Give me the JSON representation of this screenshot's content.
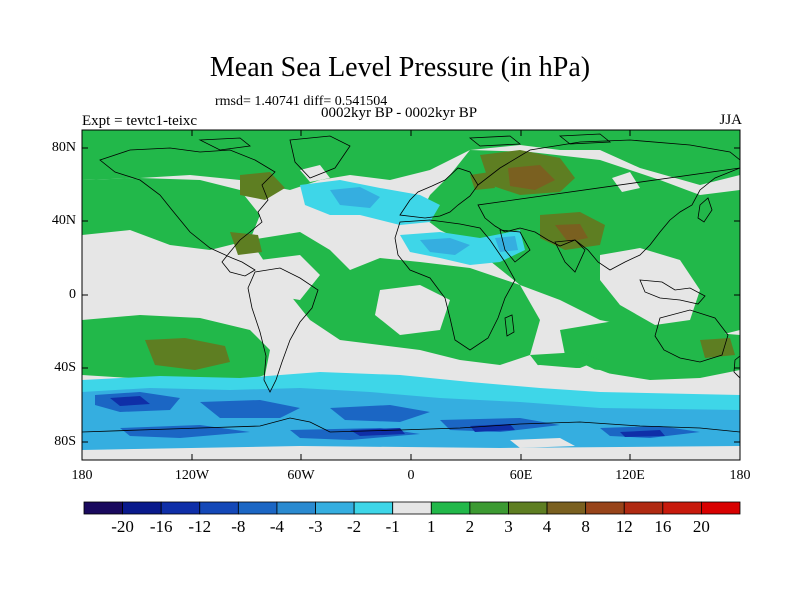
{
  "title": "Mean Sea Level Pressure (in hPa)",
  "stats": "rmsd= 1.40741 diff= 0.541504",
  "experiment": "Expt = tevtc1-teixc",
  "subtitle": "0002kyr BP - 0002kyr BP",
  "season": "JJA",
  "lat_labels": [
    "80N",
    "40N",
    "0",
    "40S",
    "80S"
  ],
  "lon_labels": [
    "180",
    "120W",
    "60W",
    "0",
    "60E",
    "120E",
    "180"
  ],
  "colorbar": {
    "labels": [
      "-20",
      "-16",
      "-12",
      "-8",
      "-4",
      "-3",
      "-2",
      "-1",
      "1",
      "2",
      "3",
      "4",
      "8",
      "12",
      "16",
      "20"
    ],
    "colors": [
      "#1a0a5e",
      "#0a1a8c",
      "#0f2fa8",
      "#1448b8",
      "#1b66c4",
      "#2a8ad0",
      "#35aee0",
      "#3ed6e8",
      "#e6e6e6",
      "#22b84a",
      "#3c9a32",
      "#5e7e22",
      "#7a6020",
      "#98441a",
      "#b02a12",
      "#c81a0c",
      "#d80000"
    ]
  },
  "map": {
    "projection": "cylindrical equidistant, 180W to 180E",
    "lon_range": [
      -180,
      180
    ],
    "lat_range": [
      -90,
      90
    ],
    "background_color": "#e6e6e6",
    "coastline_color": "#000000"
  }
}
